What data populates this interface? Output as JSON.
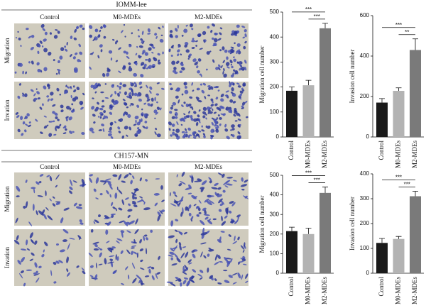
{
  "panels": [
    {
      "title": "IOMM-lee",
      "columns": [
        "Control",
        "M0-MDEs",
        "M2-MDEs"
      ],
      "rows": [
        "Migration",
        "Invation"
      ]
    },
    {
      "title": "CH157-MN",
      "columns": [
        "Control",
        "M0-MDEs",
        "M2-MDEs"
      ],
      "rows": [
        "Migration",
        "Invation"
      ]
    }
  ],
  "chart_data": [
    {
      "type": "bar",
      "y_label": "Migration cell number",
      "categories": [
        "Control",
        "M0-MDEs",
        "M2-MDEs"
      ],
      "values": [
        185,
        207,
        435
      ],
      "errors": [
        15,
        20,
        20
      ],
      "colors": [
        "#1a1a1a",
        "#b3b3b3",
        "#7a7a7a"
      ],
      "ylim": [
        0,
        500
      ],
      "yticks": [
        0,
        100,
        200,
        300,
        400,
        500
      ],
      "annotations": [
        "***",
        "***"
      ]
    },
    {
      "type": "bar",
      "y_label": "Invasion cell number",
      "categories": [
        "Control",
        "M0-MDEs",
        "M2-MDEs"
      ],
      "values": [
        170,
        228,
        430
      ],
      "errors": [
        20,
        15,
        55
      ],
      "colors": [
        "#1a1a1a",
        "#b3b3b3",
        "#7a7a7a"
      ],
      "ylim": [
        0,
        600
      ],
      "yticks": [
        0,
        200,
        400,
        600
      ],
      "annotations": [
        "***",
        "**"
      ]
    },
    {
      "type": "bar",
      "y_label": "Migration cell number",
      "categories": [
        "Control",
        "M0-MDEs",
        "M2-MDEs"
      ],
      "values": [
        215,
        200,
        410
      ],
      "errors": [
        20,
        30,
        30
      ],
      "colors": [
        "#1a1a1a",
        "#b3b3b3",
        "#7a7a7a"
      ],
      "ylim": [
        0,
        500
      ],
      "yticks": [
        0,
        100,
        200,
        300,
        400,
        500
      ],
      "annotations": [
        "***",
        "***"
      ]
    },
    {
      "type": "bar",
      "y_label": "Invasion cell number",
      "categories": [
        "Control",
        "M0-MDEs",
        "M2-MDEs"
      ],
      "values": [
        122,
        138,
        310
      ],
      "errors": [
        18,
        10,
        20
      ],
      "colors": [
        "#1a1a1a",
        "#b3b3b3",
        "#7a7a7a"
      ],
      "ylim": [
        0,
        400
      ],
      "yticks": [
        0,
        100,
        200,
        300,
        400
      ],
      "annotations": [
        "***",
        "***"
      ]
    }
  ]
}
